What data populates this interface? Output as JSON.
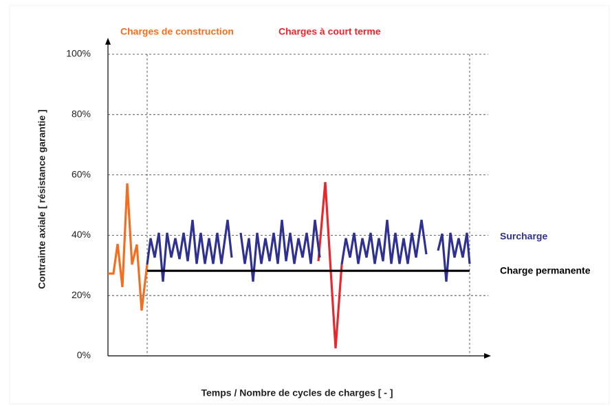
{
  "chart_data": {
    "type": "line",
    "ylabel": "Contrainte axiale [ résistance garantie ]",
    "xlabel": "Temps / Nombre de cycles de charges [ - ]",
    "ylim": [
      0,
      100
    ],
    "yticks": [
      {
        "value": 0,
        "label": "0%"
      },
      {
        "value": 20,
        "label": "20%"
      },
      {
        "value": 40,
        "label": "40%"
      },
      {
        "value": 60,
        "label": "60%"
      },
      {
        "value": 80,
        "label": "80%"
      },
      {
        "value": 100,
        "label": "100%"
      }
    ],
    "xlim": [
      0,
      553
    ],
    "vlines": [
      57,
      526
    ],
    "grid": true,
    "series": [
      {
        "name": "Charges de construction",
        "color": "#f26f21",
        "x": [
          0,
          8,
          14,
          21,
          28,
          35,
          42,
          49,
          57
        ],
        "values": [
          27.3,
          27.3,
          37.1,
          22.8,
          57.2,
          30.3,
          36.9,
          15.0,
          30.3
        ]
      },
      {
        "name": "Charges à court terme",
        "color": "#e8262c",
        "x": [
          306,
          316,
          331,
          340
        ],
        "values": [
          31.4,
          57.6,
          2.5,
          30.3
        ]
      },
      {
        "name": "Surcharge",
        "color": "#2e3192",
        "x": [
          57,
          62,
          68,
          74,
          80,
          86,
          92,
          98,
          104,
          110,
          116,
          123,
          129,
          135,
          141,
          147,
          153,
          159,
          165,
          174,
          180,
          186,
          193,
          199,
          205,
          211,
          217,
          223,
          229,
          235,
          241,
          247,
          253,
          259,
          265,
          271,
          277,
          283,
          289,
          295,
          301,
          308,
          320,
          340,
          346,
          352,
          358,
          364,
          370,
          376,
          382,
          388,
          394,
          400,
          406,
          412,
          418,
          424,
          430,
          436,
          442,
          448,
          456,
          463,
          472,
          480,
          486,
          492,
          498,
          504,
          510,
          516,
          522,
          526
        ],
        "values": [
          30.3,
          39.0,
          32.6,
          40.8,
          24.6,
          40.8,
          32.6,
          39.0,
          32.1,
          40.8,
          31.4,
          45.1,
          30.5,
          40.8,
          30.5,
          39.0,
          30.5,
          40.8,
          30.5,
          45.1,
          32.6,
          null,
          40.8,
          30.5,
          39.0,
          24.6,
          40.8,
          30.5,
          39.0,
          31.4,
          40.8,
          30.5,
          45.1,
          31.4,
          40.8,
          30.5,
          39.0,
          32.6,
          40.8,
          30.5,
          45.1,
          32.6,
          null,
          30.3,
          39.0,
          32.6,
          40.8,
          30.5,
          39.0,
          32.6,
          40.8,
          30.5,
          39.0,
          31.4,
          45.1,
          30.5,
          40.8,
          30.5,
          39.0,
          30.5,
          40.8,
          32.6,
          45.1,
          33.7,
          null,
          34.9,
          40.5,
          24.6,
          40.8,
          32.6,
          39.0,
          32.6,
          40.8,
          30.5
        ]
      },
      {
        "name": "Charge permanente",
        "color": "#000000",
        "x": [
          57,
          526
        ],
        "values": [
          28.2,
          28.2
        ]
      }
    ]
  }
}
